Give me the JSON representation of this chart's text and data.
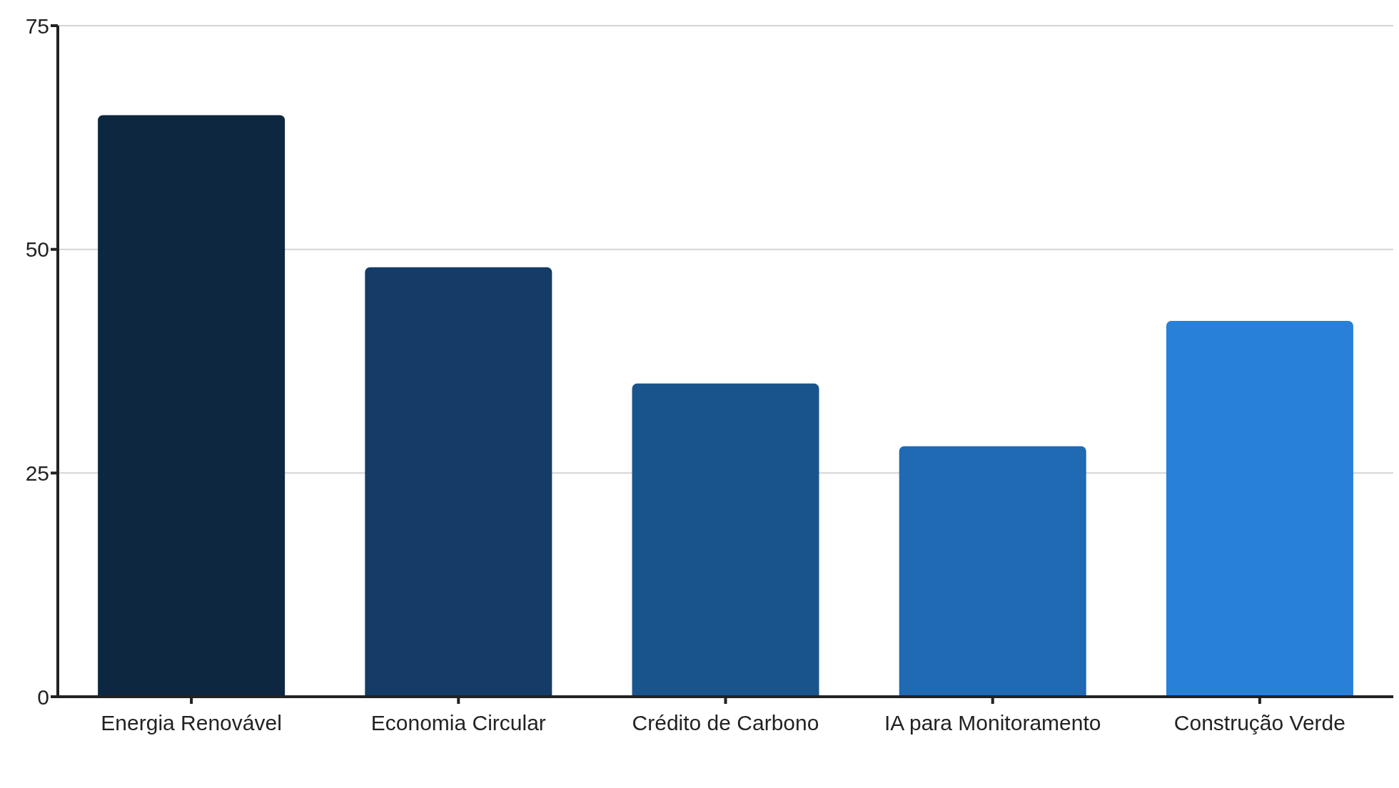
{
  "chart_data": {
    "type": "bar",
    "categories": [
      "Energia Renovável",
      "Economia Circular",
      "Crédito de Carbono",
      "IA para Monitoramento",
      "Construção Verde"
    ],
    "values": [
      65,
      48,
      35,
      28,
      42
    ],
    "colors": [
      "#0d2740",
      "#143c66",
      "#1a548c",
      "#2069b3",
      "#2880d9"
    ],
    "ylim": [
      0,
      75
    ],
    "yticks": [
      0,
      25,
      50,
      75
    ],
    "grid": "y"
  }
}
